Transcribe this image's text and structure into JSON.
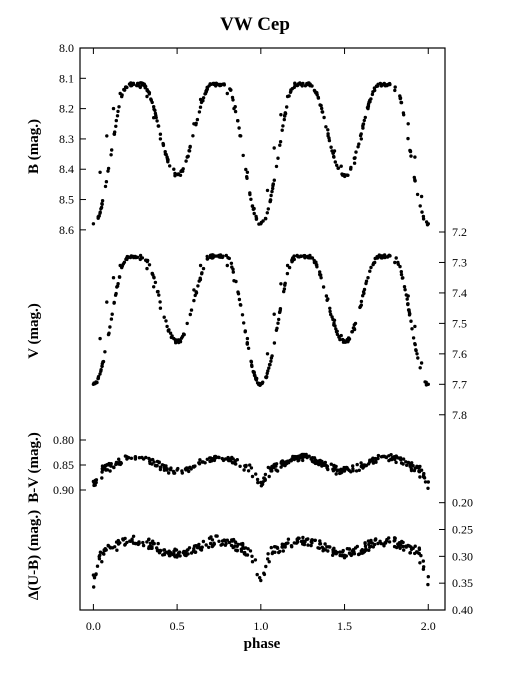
{
  "chart_data": {
    "type": "scatter",
    "title": "VW Cep",
    "xlabel": "phase",
    "x_ticks": [
      "0.0",
      "0.5",
      "1.0",
      "1.5",
      "2.0"
    ],
    "xlim": [
      -0.08,
      2.1
    ],
    "colors": {
      "marker": "#000000",
      "axis": "#000000"
    },
    "panels": [
      {
        "id": "B",
        "ylabel": "B (mag.)",
        "axis_side": "left",
        "ylim": [
          8.0,
          8.65
        ],
        "inverted": true,
        "ticks": [
          "8.0",
          "8.1",
          "8.2",
          "8.3",
          "8.4",
          "8.5",
          "8.6"
        ],
        "curve": {
          "max": 8.12,
          "min1": 8.58,
          "min2": 8.42
        },
        "series": [
          {
            "name": "",
            "x": [
              0.0,
              0.04,
              0.08,
              0.12,
              0.16,
              0.2,
              0.24,
              0.28,
              0.32,
              0.36,
              0.4,
              0.44,
              0.48,
              0.52,
              0.56,
              0.6,
              0.64,
              0.68,
              0.72,
              0.76,
              0.8,
              0.84,
              0.88,
              0.92,
              0.96,
              1.0,
              1.04,
              1.08,
              1.12,
              1.16,
              1.2,
              1.24,
              1.28,
              1.32,
              1.36,
              1.4,
              1.44,
              1.48,
              1.52,
              1.56,
              1.6,
              1.64,
              1.68,
              1.72,
              1.76,
              1.8,
              1.84,
              1.88,
              1.92,
              1.96,
              2.0
            ],
            "y": [
              8.58,
              8.41,
              8.29,
              8.2,
              8.15,
              8.13,
              8.12,
              8.13,
              8.16,
              8.23,
              8.3,
              8.36,
              8.4,
              8.42,
              8.36,
              8.25,
              8.17,
              8.13,
              8.12,
              8.12,
              8.15,
              8.2,
              8.29,
              8.41,
              8.53,
              8.58,
              8.47,
              8.33,
              8.22,
              8.16,
              8.13,
              8.12,
              8.12,
              8.14,
              8.19,
              8.27,
              8.34,
              8.39,
              8.42,
              8.38,
              8.3,
              8.2,
              8.14,
              8.12,
              8.12,
              8.14,
              8.18,
              8.25,
              8.36,
              8.49,
              8.58
            ]
          }
        ]
      },
      {
        "id": "V",
        "ylabel": "V (mag.)",
        "axis_side": "right",
        "ylim": [
          7.2,
          7.85
        ],
        "inverted": true,
        "ticks": [
          "7.2",
          "7.3",
          "7.4",
          "7.5",
          "7.6",
          "7.7",
          "7.8"
        ],
        "curve": {
          "max": 7.28,
          "min1": 7.7,
          "min2": 7.56
        },
        "series": [
          {
            "name": "",
            "x": [
              0.0,
              0.04,
              0.08,
              0.12,
              0.16,
              0.2,
              0.24,
              0.28,
              0.32,
              0.36,
              0.4,
              0.44,
              0.48,
              0.52,
              0.56,
              0.6,
              0.64,
              0.68,
              0.72,
              0.76,
              0.8,
              0.84,
              0.88,
              0.92,
              0.96,
              1.0,
              1.04,
              1.08,
              1.12,
              1.16,
              1.2,
              1.24,
              1.28,
              1.32,
              1.36,
              1.4,
              1.44,
              1.48,
              1.52,
              1.56,
              1.6,
              1.64,
              1.68,
              1.72,
              1.76,
              1.8,
              1.84,
              1.88,
              1.92,
              1.96,
              2.0
            ],
            "y": [
              7.7,
              7.55,
              7.43,
              7.35,
              7.31,
              7.29,
              7.28,
              7.29,
              7.32,
              7.38,
              7.45,
              7.51,
              7.55,
              7.56,
              7.5,
              7.39,
              7.31,
              7.28,
              7.28,
              7.28,
              7.31,
              7.36,
              7.44,
              7.55,
              7.66,
              7.7,
              7.6,
              7.47,
              7.37,
              7.31,
              7.29,
              7.28,
              7.28,
              7.3,
              7.35,
              7.42,
              7.49,
              7.54,
              7.56,
              7.52,
              7.44,
              7.35,
              7.3,
              7.28,
              7.28,
              7.3,
              7.34,
              7.41,
              7.51,
              7.63,
              7.7
            ]
          }
        ]
      },
      {
        "id": "BV",
        "ylabel": "B-V (mag.)",
        "axis_side": "left",
        "ylim": [
          0.78,
          0.93
        ],
        "inverted": true,
        "ticks": [
          "0.80",
          "0.85",
          "0.90"
        ],
        "curve": {
          "base": 0.848,
          "amp": 0.013,
          "dip": 0.03
        },
        "series": [
          {
            "name": "",
            "x": [
              0.0,
              0.05,
              0.1,
              0.15,
              0.2,
              0.25,
              0.3,
              0.35,
              0.4,
              0.45,
              0.5,
              0.55,
              0.6,
              0.65,
              0.7,
              0.75,
              0.8,
              0.85,
              0.9,
              0.95,
              1.0,
              1.05,
              1.1,
              1.15,
              1.2,
              1.25,
              1.3,
              1.35,
              1.4,
              1.45,
              1.5,
              1.55,
              1.6,
              1.65,
              1.7,
              1.75,
              1.8,
              1.85,
              1.9,
              1.95,
              2.0
            ],
            "y": [
              0.883,
              0.876,
              0.862,
              0.848,
              0.838,
              0.835,
              0.838,
              0.848,
              0.859,
              0.866,
              0.86,
              0.858,
              0.854,
              0.844,
              0.836,
              0.835,
              0.838,
              0.848,
              0.86,
              0.873,
              0.885,
              0.873,
              0.862,
              0.848,
              0.839,
              0.835,
              0.838,
              0.847,
              0.859,
              0.868,
              0.862,
              0.858,
              0.853,
              0.844,
              0.837,
              0.835,
              0.839,
              0.848,
              0.861,
              0.874,
              0.884
            ]
          }
        ]
      },
      {
        "id": "UB",
        "ylabel": "Δ(U-B) (mag.)",
        "axis_side": "right",
        "ylim": [
          0.195,
          0.4
        ],
        "inverted": true,
        "ticks": [
          "0.20",
          "0.25",
          "0.30",
          "0.35",
          "0.40"
        ],
        "curve": {
          "base": 0.283,
          "amp": 0.012,
          "dip": 0.055
        },
        "series": [
          {
            "name": "",
            "x": [
              0.0,
              0.05,
              0.1,
              0.15,
              0.2,
              0.25,
              0.3,
              0.35,
              0.4,
              0.45,
              0.5,
              0.55,
              0.6,
              0.65,
              0.7,
              0.75,
              0.8,
              0.85,
              0.9,
              0.95,
              1.0,
              1.05,
              1.1,
              1.15,
              1.2,
              1.25,
              1.3,
              1.35,
              1.4,
              1.45,
              1.5,
              1.55,
              1.6,
              1.65,
              1.7,
              1.75,
              1.8,
              1.85,
              1.9,
              1.95,
              2.0
            ],
            "y": [
              0.335,
              0.31,
              0.283,
              0.277,
              0.274,
              0.276,
              0.28,
              0.285,
              0.29,
              0.295,
              0.298,
              0.296,
              0.29,
              0.283,
              0.276,
              0.272,
              0.27,
              0.274,
              0.285,
              0.31,
              0.345,
              0.31,
              0.285,
              0.277,
              0.275,
              0.277,
              0.28,
              0.285,
              0.29,
              0.295,
              0.298,
              0.295,
              0.29,
              0.283,
              0.276,
              0.272,
              0.27,
              0.274,
              0.287,
              0.312,
              0.338
            ]
          }
        ]
      }
    ]
  }
}
